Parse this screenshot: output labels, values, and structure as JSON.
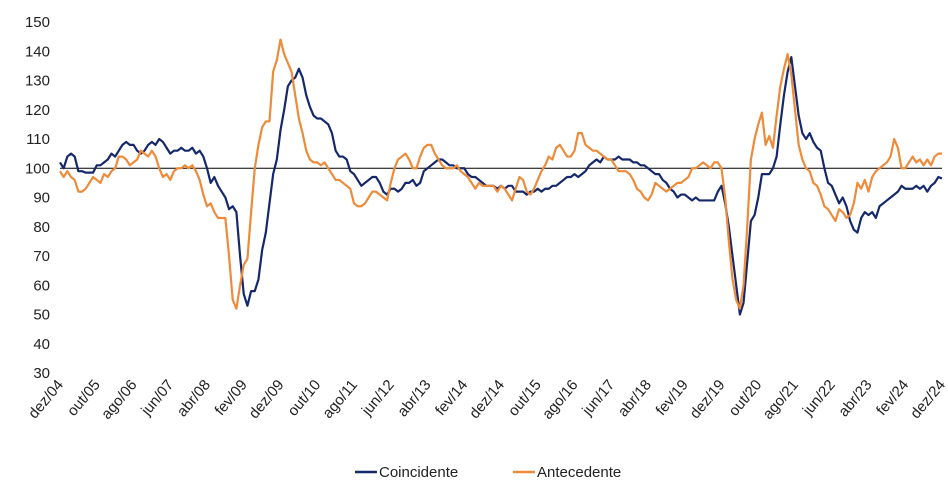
{
  "chart_data": {
    "type": "line",
    "categories": [
      "dez/04",
      null,
      null,
      null,
      null,
      null,
      null,
      null,
      null,
      null,
      "out/05",
      null,
      null,
      null,
      null,
      null,
      null,
      null,
      null,
      null,
      "ago/06",
      null,
      null,
      null,
      null,
      null,
      null,
      null,
      null,
      null,
      "jun/07",
      null,
      null,
      null,
      null,
      null,
      null,
      null,
      null,
      null,
      "abr/08",
      null,
      null,
      null,
      null,
      null,
      null,
      null,
      null,
      null,
      "fev/09",
      null,
      null,
      null,
      null,
      null,
      null,
      null,
      null,
      null,
      "dez/09",
      null,
      null,
      null,
      null,
      null,
      null,
      null,
      null,
      null,
      "out/10",
      null,
      null,
      null,
      null,
      null,
      null,
      null,
      null,
      null,
      "ago/11",
      null,
      null,
      null,
      null,
      null,
      null,
      null,
      null,
      null,
      "jun/12",
      null,
      null,
      null,
      null,
      null,
      null,
      null,
      null,
      null,
      "abr/13",
      null,
      null,
      null,
      null,
      null,
      null,
      null,
      null,
      null,
      "fev/14",
      null,
      null,
      null,
      null,
      null,
      null,
      null,
      null,
      null,
      "dez/14",
      null,
      null,
      null,
      null,
      null,
      null,
      null,
      null,
      null,
      "out/15",
      null,
      null,
      null,
      null,
      null,
      null,
      null,
      null,
      null,
      "ago/16",
      null,
      null,
      null,
      null,
      null,
      null,
      null,
      null,
      null,
      "jun/17",
      null,
      null,
      null,
      null,
      null,
      null,
      null,
      null,
      null,
      "abr/18",
      null,
      null,
      null,
      null,
      null,
      null,
      null,
      null,
      null,
      "fev/19",
      null,
      null,
      null,
      null,
      null,
      null,
      null,
      null,
      null,
      "dez/19",
      null,
      null,
      null,
      null,
      null,
      null,
      null,
      null,
      null,
      "out/20",
      null,
      null,
      null,
      null,
      null,
      null,
      null,
      null,
      null,
      "ago/21",
      null,
      null,
      null,
      null,
      null,
      null,
      null,
      null,
      null,
      "jun/22",
      null,
      null,
      null,
      null,
      null,
      null,
      null,
      null,
      null,
      "abr/23",
      null,
      null,
      null,
      null,
      null,
      null,
      null,
      null,
      null,
      "fev/24",
      null,
      null,
      null,
      null,
      null,
      null,
      null,
      null,
      null,
      "dez/24"
    ],
    "series": [
      {
        "name": "Coincidente",
        "color": "#14286b",
        "values": [
          102,
          100,
          104,
          105,
          104,
          99,
          99,
          98.5,
          98.5,
          98.5,
          101,
          101,
          102,
          103,
          105,
          104,
          106,
          108,
          109,
          108,
          108,
          106,
          105,
          106,
          108,
          109,
          108,
          110,
          109,
          107,
          105,
          106,
          106,
          107,
          106,
          106,
          107,
          105,
          106,
          104,
          100,
          95,
          97,
          94,
          92,
          90,
          86,
          87,
          85,
          70,
          57,
          53,
          58,
          58,
          62,
          72,
          78,
          88,
          98,
          103,
          113,
          120,
          128,
          130,
          131,
          134,
          131,
          125,
          121,
          118,
          117,
          117,
          116,
          115,
          112,
          106,
          104,
          104,
          103,
          99,
          98,
          96,
          94,
          95,
          96,
          97,
          97,
          95,
          92,
          91,
          93,
          93,
          92,
          93,
          95,
          95,
          96,
          94,
          95,
          99,
          100,
          101,
          102,
          103,
          103,
          102,
          101,
          101,
          100,
          100,
          100,
          98,
          97,
          97,
          96,
          95,
          94,
          94,
          94,
          93,
          94,
          93,
          94,
          94,
          92,
          92,
          92,
          91,
          92,
          92,
          93,
          92,
          93,
          93,
          94,
          94,
          95,
          96,
          97,
          97,
          98,
          97,
          98,
          99,
          101,
          102,
          103,
          102,
          104,
          103,
          103,
          103,
          104,
          103,
          103,
          103,
          102,
          102,
          101,
          101,
          100,
          99,
          98,
          98,
          96,
          95,
          93,
          92,
          90,
          91,
          91,
          90,
          89,
          90,
          89,
          89,
          89,
          89,
          89,
          92,
          94,
          88,
          80,
          70,
          60,
          50,
          54,
          68,
          82,
          84,
          90,
          98,
          98,
          98,
          100,
          104,
          115,
          125,
          133,
          138,
          128,
          118,
          112,
          110,
          112,
          109,
          107,
          106,
          100,
          95,
          94,
          91,
          88,
          90,
          87,
          82,
          79,
          78,
          83,
          85,
          84,
          85,
          83,
          87,
          88,
          89,
          90,
          91,
          92,
          94,
          93,
          93,
          93,
          94,
          93,
          94,
          92,
          94,
          95,
          97,
          96.5
        ]
      },
      {
        "name": "Antecedente",
        "color": "#ed8b3a",
        "values": [
          99,
          97,
          99,
          97,
          96,
          92,
          92,
          93,
          95,
          97,
          96,
          95,
          98,
          97,
          99,
          100,
          104,
          104,
          103,
          101,
          102,
          103,
          106,
          105,
          104,
          106,
          104,
          100,
          97,
          98,
          96,
          99,
          100,
          100,
          101,
          100,
          101,
          99,
          96,
          91,
          87,
          88,
          85,
          83,
          83,
          83,
          70,
          55,
          52,
          60,
          67,
          69,
          85,
          100,
          108,
          114,
          116,
          116,
          133,
          137,
          144,
          139,
          136,
          133,
          125,
          117,
          112,
          106,
          103,
          102,
          102,
          101,
          102,
          100,
          98,
          96,
          96,
          95,
          94,
          93,
          88,
          87,
          87,
          88,
          90,
          92,
          92,
          91,
          90,
          89,
          95,
          100,
          103,
          104,
          105,
          103,
          100,
          100,
          104,
          107,
          108,
          108,
          105,
          103,
          101,
          100,
          100,
          100,
          101,
          99,
          98,
          97,
          95,
          93,
          95,
          94,
          94,
          94,
          94,
          92,
          94,
          93,
          91,
          89,
          93,
          97,
          96,
          92,
          91,
          93,
          96,
          99,
          101,
          104,
          103,
          107,
          108,
          106,
          104,
          104,
          106,
          112,
          112,
          108,
          107,
          106,
          106,
          105,
          104,
          103,
          103,
          101,
          99,
          99,
          99,
          98,
          96,
          93,
          92,
          90,
          89,
          91,
          95,
          94,
          93,
          92,
          93,
          94,
          95,
          95,
          96,
          97,
          100,
          100,
          101,
          102,
          101,
          100,
          102,
          102,
          100,
          90,
          75,
          62,
          55,
          52,
          60,
          80,
          103,
          110,
          115,
          119,
          108,
          111,
          107,
          118,
          128,
          134,
          139,
          132,
          120,
          108,
          103,
          100,
          99,
          95,
          94,
          91,
          87,
          86,
          84,
          82,
          86,
          85,
          83,
          84,
          88,
          95,
          93,
          96,
          92,
          97,
          99,
          100,
          101,
          102,
          104,
          110,
          107,
          100,
          100,
          102,
          104,
          102,
          103,
          101,
          103,
          101,
          104,
          105,
          105
        ]
      }
    ],
    "ylim": [
      30,
      150
    ],
    "yticks": [
      30,
      40,
      50,
      60,
      70,
      80,
      90,
      100,
      110,
      120,
      130,
      140,
      150
    ],
    "reference_line": 100,
    "reference_color": "#000000",
    "grid": false,
    "legend": "bottom"
  }
}
